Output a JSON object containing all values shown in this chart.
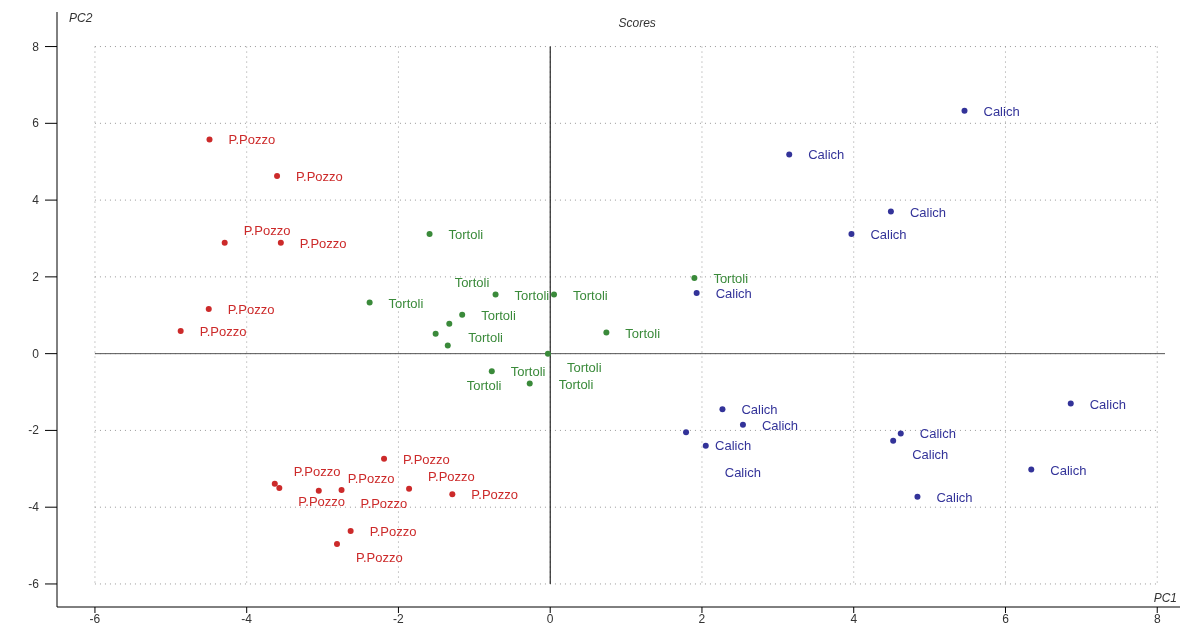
{
  "chart_data": {
    "type": "scatter",
    "title": "Scores",
    "xlabel": "PC1",
    "ylabel": "PC2",
    "xlim": [
      -6.5,
      8.3
    ],
    "ylim": [
      -6.6,
      8.9
    ],
    "xticks": [
      -6,
      -4,
      -2,
      0,
      2,
      4,
      6,
      8
    ],
    "yticks": [
      -6,
      -4,
      -2,
      0,
      2,
      4,
      6,
      8
    ],
    "grid": true,
    "legend": false,
    "marker": "circle",
    "ref_lines": [
      {
        "axis": "x",
        "value": 0,
        "color": "#000000"
      },
      {
        "axis": "y",
        "value": 0,
        "color": "#555555"
      }
    ],
    "series": [
      {
        "name": "P.Pozzo",
        "color": "#cc2a2a",
        "x": [
          -4.49,
          -3.6,
          -4.29,
          -3.55,
          -4.5,
          -4.87,
          -2.19,
          -3.63,
          -3.57,
          -3.05,
          -2.75,
          -1.86,
          -1.29,
          -2.63,
          -2.81
        ],
        "values": [
          5.58,
          4.63,
          2.89,
          2.89,
          1.16,
          0.59,
          -2.74,
          -3.39,
          -3.5,
          -3.57,
          -3.55,
          -3.52,
          -3.66,
          -4.62,
          -4.96
        ]
      },
      {
        "name": "Tortoli",
        "color": "#3a8a3a",
        "x": [
          -1.59,
          -2.38,
          -0.72,
          0.05,
          -1.16,
          -1.33,
          -1.51,
          -1.35,
          0.74,
          -0.03,
          -0.77,
          -0.27,
          1.9
        ],
        "values": [
          3.12,
          1.33,
          1.54,
          1.54,
          1.01,
          0.78,
          0.52,
          0.21,
          0.55,
          0,
          -0.46,
          -0.78,
          1.97
        ]
      },
      {
        "name": "Calich",
        "color": "#333399",
        "x": [
          5.46,
          3.15,
          4.49,
          3.97,
          1.93,
          2.27,
          2.54,
          1.79,
          2.05,
          4.62,
          4.52,
          6.86,
          6.34,
          4.84
        ],
        "values": [
          6.33,
          5.19,
          3.7,
          3.12,
          1.58,
          -1.45,
          -1.85,
          -2.05,
          -2.4,
          -2.08,
          -2.27,
          -1.3,
          -3.02,
          -3.73
        ]
      }
    ]
  }
}
